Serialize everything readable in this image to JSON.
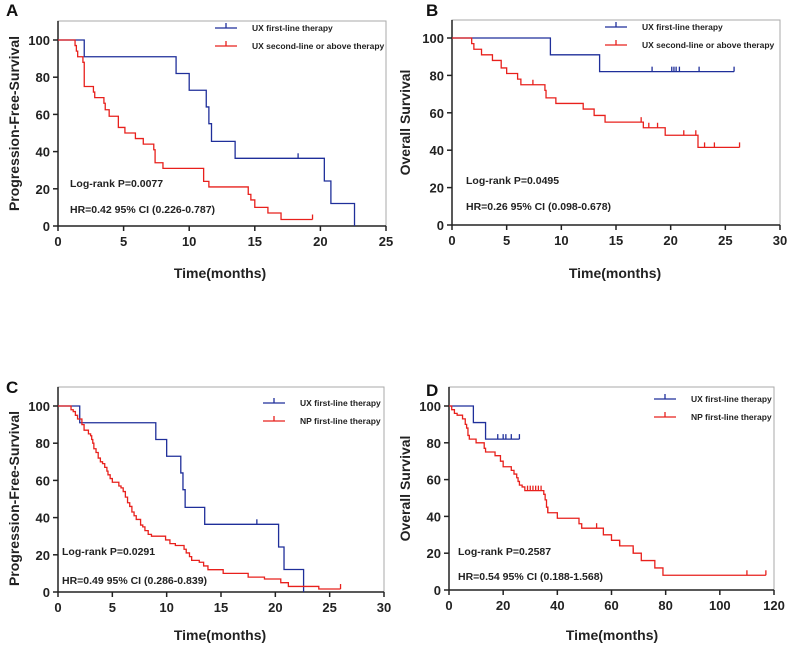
{
  "chart_data": [
    {
      "type": "line",
      "panel_label": "A",
      "title": "",
      "xlabel": "Time(months)",
      "ylabel": "Progression-Free-Survival",
      "xlim": [
        0,
        25
      ],
      "ylim": [
        0,
        100
      ],
      "xticks": [
        0,
        5,
        10,
        15,
        20,
        25
      ],
      "yticks": [
        0,
        20,
        40,
        60,
        80,
        100
      ],
      "legend_position": "top-right",
      "annotations": [
        "Log-rank P=0.0077",
        "HR=0.42   95% CI (0.226-0.787)"
      ],
      "series": [
        {
          "name": "UX first-line therapy",
          "color": "#1f2f9a",
          "end": 22.6,
          "steps": [
            [
              2,
              91
            ],
            [
              9,
              82
            ],
            [
              10,
              73
            ],
            [
              11.3,
              64
            ],
            [
              11.5,
              55
            ],
            [
              11.7,
              45.5
            ],
            [
              13.5,
              36.4
            ],
            [
              20.3,
              24.2
            ],
            [
              20.8,
              12.1
            ],
            [
              22.6,
              0
            ]
          ],
          "censors": [
            18.3
          ]
        },
        {
          "name": "UX second-line or above therapy",
          "color": "#e8201c",
          "end": 19.4,
          "steps": [
            [
              1.3,
              97
            ],
            [
              1.4,
              94
            ],
            [
              1.5,
              91
            ],
            [
              1.9,
              88
            ],
            [
              2,
              75
            ],
            [
              2.7,
              72
            ],
            [
              2.8,
              69
            ],
            [
              3.5,
              66
            ],
            [
              3.6,
              62.5
            ],
            [
              3.9,
              59
            ],
            [
              4.6,
              53
            ],
            [
              5.1,
              50
            ],
            [
              5.9,
              47
            ],
            [
              6.5,
              44
            ],
            [
              7.3,
              41
            ],
            [
              7.4,
              34
            ],
            [
              8,
              31
            ],
            [
              11.1,
              24
            ],
            [
              11.5,
              21
            ],
            [
              14.5,
              17
            ],
            [
              14.7,
              14
            ],
            [
              15,
              10
            ],
            [
              16,
              7
            ],
            [
              17,
              3.5
            ]
          ],
          "censors": [
            19.4
          ]
        }
      ]
    },
    {
      "type": "line",
      "panel_label": "B",
      "title": "",
      "xlabel": "Time(months)",
      "ylabel": "Overall Survival",
      "xlim": [
        0,
        30
      ],
      "ylim": [
        0,
        100
      ],
      "xticks": [
        0,
        5,
        10,
        15,
        20,
        25,
        30
      ],
      "yticks": [
        0,
        20,
        40,
        60,
        80,
        100
      ],
      "legend_position": "top-right",
      "annotations": [
        "Log-rank P=0.0495",
        "HR=0.26   95% CI (0.098-0.678)"
      ],
      "series": [
        {
          "name": "UX first-line therapy",
          "color": "#1f2f9a",
          "end": 25.8,
          "steps": [
            [
              9,
              91
            ],
            [
              13.5,
              82
            ]
          ],
          "censors": [
            18.3,
            20.1,
            20.3,
            20.5,
            20.8,
            22.6,
            25.8
          ]
        },
        {
          "name": "UX second-line or above therapy",
          "color": "#e8201c",
          "end": 26.3,
          "steps": [
            [
              1.8,
              97
            ],
            [
              2,
              94
            ],
            [
              2.7,
              91
            ],
            [
              3.7,
              88
            ],
            [
              4.5,
              84
            ],
            [
              5,
              81
            ],
            [
              6,
              78
            ],
            [
              6.3,
              75
            ],
            [
              8.5,
              72
            ],
            [
              8.6,
              68
            ],
            [
              9.5,
              65
            ],
            [
              12,
              62
            ],
            [
              13,
              58.6
            ],
            [
              14,
              55
            ],
            [
              17.5,
              52
            ],
            [
              19.5,
              48
            ],
            [
              22.5,
              41.5
            ]
          ],
          "censors": [
            7.4,
            17.3,
            18,
            18.8,
            21.2,
            22.3,
            23.1,
            24,
            26.3
          ]
        }
      ]
    },
    {
      "type": "line",
      "panel_label": "C",
      "title": "",
      "xlabel": "Time(months)",
      "ylabel": "Progression-Free-Survival",
      "xlim": [
        0,
        30
      ],
      "ylim": [
        0,
        100
      ],
      "xticks": [
        0,
        5,
        10,
        15,
        20,
        25,
        30
      ],
      "yticks": [
        0,
        20,
        40,
        60,
        80,
        100
      ],
      "legend_position": "top-right",
      "annotations": [
        "Log-rank P=0.0291",
        "HR=0.49   95% CI (0.286-0.839)"
      ],
      "series": [
        {
          "name": "UX first-line therapy",
          "color": "#1f2f9a",
          "end": 22.6,
          "steps": [
            [
              2,
              91
            ],
            [
              9,
              82
            ],
            [
              10,
              73
            ],
            [
              11.3,
              64
            ],
            [
              11.5,
              55
            ],
            [
              11.7,
              45.5
            ],
            [
              13.5,
              36.4
            ],
            [
              20.3,
              24.2
            ],
            [
              20.8,
              12.1
            ],
            [
              22.6,
              0
            ]
          ],
          "censors": [
            18.3
          ]
        },
        {
          "name": "NP first-line therapy",
          "color": "#e8201c",
          "end": 26,
          "steps": [
            [
              1.2,
              98
            ],
            [
              1.4,
              97
            ],
            [
              1.6,
              95
            ],
            [
              1.8,
              93
            ],
            [
              2.2,
              90
            ],
            [
              2.4,
              87
            ],
            [
              2.8,
              85
            ],
            [
              3.0,
              84
            ],
            [
              3.1,
              82
            ],
            [
              3.2,
              80
            ],
            [
              3.3,
              77
            ],
            [
              3.5,
              75
            ],
            [
              3.7,
              72
            ],
            [
              3.9,
              70
            ],
            [
              4.1,
              69
            ],
            [
              4.3,
              67
            ],
            [
              4.5,
              65
            ],
            [
              4.6,
              63
            ],
            [
              4.8,
              61
            ],
            [
              5.0,
              59
            ],
            [
              5.6,
              57
            ],
            [
              5.8,
              56
            ],
            [
              6.0,
              54
            ],
            [
              6.2,
              51
            ],
            [
              6.4,
              48
            ],
            [
              6.6,
              46
            ],
            [
              6.8,
              43
            ],
            [
              7.0,
              41
            ],
            [
              7.2,
              39
            ],
            [
              7.6,
              36
            ],
            [
              7.8,
              35
            ],
            [
              8.0,
              33
            ],
            [
              8.3,
              31
            ],
            [
              8.6,
              30
            ],
            [
              9.9,
              28
            ],
            [
              10.3,
              26
            ],
            [
              10.8,
              25
            ],
            [
              11.6,
              23
            ],
            [
              11.8,
              21
            ],
            [
              12.1,
              19
            ],
            [
              12.3,
              17
            ],
            [
              13.0,
              16
            ],
            [
              13.4,
              14
            ],
            [
              13.8,
              12
            ],
            [
              15.2,
              10
            ],
            [
              17.5,
              8
            ],
            [
              19,
              7
            ],
            [
              20.5,
              5
            ],
            [
              21.2,
              3
            ],
            [
              24,
              1.6
            ]
          ],
          "censors": [
            26
          ]
        }
      ]
    },
    {
      "type": "line",
      "panel_label": "D",
      "title": "",
      "xlabel": "Time(months)",
      "ylabel": "Overall Survival",
      "xlim": [
        0,
        120
      ],
      "ylim": [
        0,
        100
      ],
      "xticks": [
        0,
        20,
        40,
        60,
        80,
        100,
        120
      ],
      "yticks": [
        0,
        20,
        40,
        60,
        80,
        100
      ],
      "legend_position": "top-right",
      "annotations": [
        "Log-rank P=0.2587",
        "HR=0.54   95% CI (0.188-1.568)"
      ],
      "series": [
        {
          "name": "UX first-line therapy",
          "color": "#1f2f9a",
          "end": 26,
          "steps": [
            [
              9,
              91
            ],
            [
              13.5,
              82
            ]
          ],
          "censors": [
            18,
            20,
            21,
            23,
            26
          ]
        },
        {
          "name": "NP first-line therapy",
          "color": "#e8201c",
          "end": 117,
          "steps": [
            [
              1,
              98
            ],
            [
              2,
              96
            ],
            [
              3,
              95
            ],
            [
              5,
              93
            ],
            [
              6,
              90
            ],
            [
              6.5,
              88
            ],
            [
              7,
              84
            ],
            [
              7.5,
              82
            ],
            [
              10,
              80
            ],
            [
              13,
              77
            ],
            [
              13.5,
              75
            ],
            [
              17,
              73
            ],
            [
              19,
              70
            ],
            [
              20,
              67
            ],
            [
              23,
              65
            ],
            [
              24,
              63
            ],
            [
              25,
              61
            ],
            [
              25.5,
              59
            ],
            [
              26,
              57
            ],
            [
              27,
              56
            ],
            [
              28,
              54
            ],
            [
              35,
              52
            ],
            [
              35.5,
              49
            ],
            [
              36,
              45
            ],
            [
              36.5,
              42
            ],
            [
              40,
              39
            ],
            [
              48,
              36
            ],
            [
              49,
              33.6
            ],
            [
              57,
              30
            ],
            [
              60,
              27
            ],
            [
              63,
              24
            ],
            [
              68,
              20
            ],
            [
              71,
              16
            ],
            [
              76,
              12
            ],
            [
              79,
              8
            ]
          ],
          "censors": [
            29,
            30,
            31,
            32,
            33,
            34,
            36.5,
            54.5,
            63,
            68,
            110,
            117
          ]
        }
      ]
    }
  ]
}
